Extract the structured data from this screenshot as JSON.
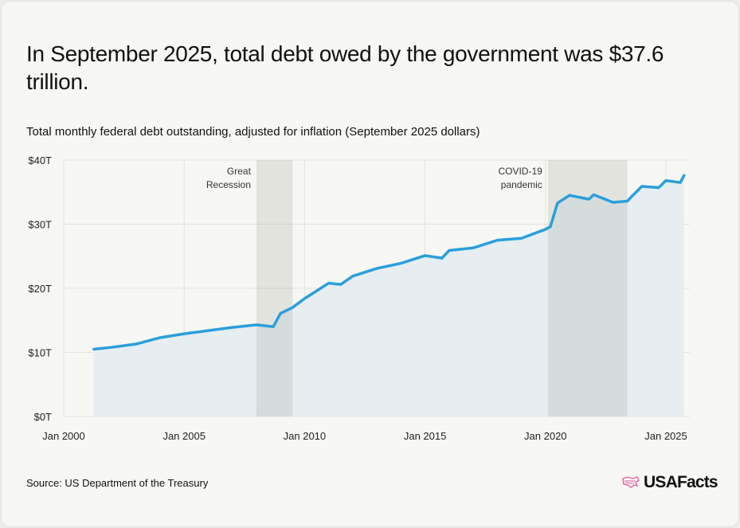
{
  "title": "In September 2025, total debt owed by the government was $37.6 trillion.",
  "footer": {
    "source": "Source: US Department of the Treasury",
    "logo": "USAFacts"
  },
  "colors": {
    "line": "#2a9fdc",
    "area": "#e6eef1",
    "shade": "#8a8a80",
    "logo_mark": "#e85aa0"
  },
  "chart_data": {
    "type": "area",
    "title": "Total monthly federal debt outstanding, adjusted for inflation (September 2025 dollars)",
    "xlabel": "",
    "ylabel": "",
    "xlim": [
      2000,
      2026
    ],
    "ylim": [
      0,
      40
    ],
    "grid": true,
    "x_ticks": [
      {
        "value": 2000,
        "label": "Jan 2000"
      },
      {
        "value": 2005,
        "label": "Jan 2005"
      },
      {
        "value": 2010,
        "label": "Jan 2010"
      },
      {
        "value": 2015,
        "label": "Jan 2015"
      },
      {
        "value": 2020,
        "label": "Jan 2020"
      },
      {
        "value": 2025,
        "label": "Jan 2025"
      }
    ],
    "y_ticks": [
      {
        "value": 0,
        "label": "$0T"
      },
      {
        "value": 10,
        "label": "$10T"
      },
      {
        "value": 20,
        "label": "$20T"
      },
      {
        "value": 30,
        "label": "$30T"
      },
      {
        "value": 40,
        "label": "$40T"
      }
    ],
    "shaded_periods": [
      {
        "label_lines": [
          "Great",
          "Recession"
        ],
        "start": 2008.0,
        "end": 2009.5
      },
      {
        "label_lines": [
          "COVID-19",
          "pandemic"
        ],
        "start": 2020.1,
        "end": 2023.4
      }
    ],
    "series": [
      {
        "unit": "trillions of September 2025 dollars",
        "x": [
          2001.25,
          2002,
          2003,
          2004,
          2005,
          2006,
          2007,
          2008,
          2008.7,
          2009,
          2009.5,
          2010,
          2011,
          2011.5,
          2012,
          2013,
          2014,
          2015,
          2015.7,
          2016,
          2017,
          2018,
          2019,
          2020,
          2020.2,
          2020.5,
          2021,
          2021.8,
          2022,
          2022.8,
          2023.4,
          2023.6,
          2024,
          2024.7,
          2025,
          2025.6,
          2025.75
        ],
        "values": [
          10.5,
          10.8,
          11.3,
          12.3,
          12.9,
          13.4,
          13.9,
          14.3,
          14.0,
          16.1,
          17.0,
          18.4,
          20.8,
          20.6,
          21.9,
          23.1,
          23.9,
          25.1,
          24.7,
          25.9,
          26.3,
          27.5,
          27.8,
          29.2,
          29.6,
          33.3,
          34.5,
          33.9,
          34.6,
          33.4,
          33.6,
          34.4,
          35.9,
          35.7,
          36.8,
          36.5,
          37.6
        ]
      }
    ]
  }
}
